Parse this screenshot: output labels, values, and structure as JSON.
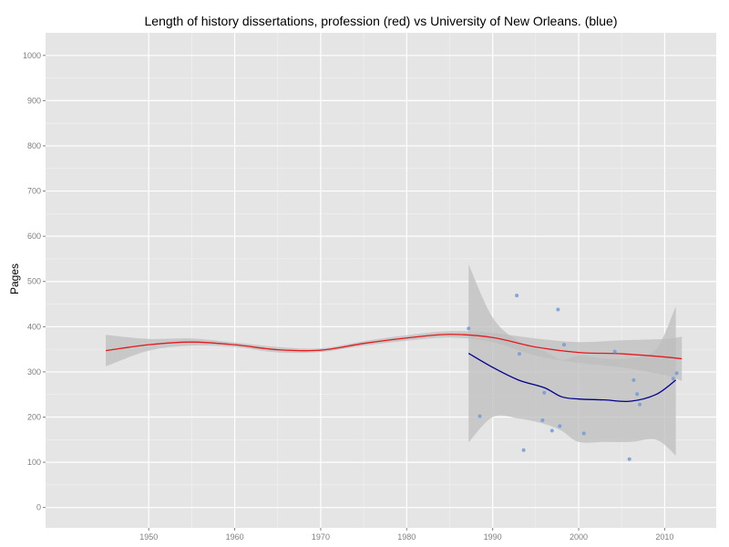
{
  "chart_data": {
    "type": "scatter",
    "title": "Length of history dissertations, profession (red) vs University of New Orleans. (blue)",
    "xlabel": "",
    "ylabel": "Pages",
    "xlim": [
      1938,
      2016
    ],
    "ylim": [
      -45,
      1050
    ],
    "x_ticks": [
      1950,
      1960,
      1970,
      1980,
      1990,
      2000,
      2010
    ],
    "x_tick_labels": [
      "1950",
      "1960",
      "1970",
      "1980",
      "1990",
      "2000",
      "2010"
    ],
    "y_ticks": [
      0,
      100,
      200,
      300,
      400,
      500,
      600,
      700,
      800,
      900,
      1000
    ],
    "y_tick_labels": [
      "0",
      "100",
      "200",
      "300",
      "400",
      "500",
      "600",
      "700",
      "800",
      "900",
      "1000"
    ],
    "grid": true,
    "colors": {
      "panel": "#e5e5e5",
      "grid_major": "#ffffff",
      "ribbon": "#bdbdbd",
      "profession": "#e41a1c",
      "uno": "#00008b",
      "points": "#6f9bd8"
    },
    "series": [
      {
        "kind": "points",
        "color": "#6f9bd8",
        "x": [
          1987.2,
          1988.5,
          1992.8,
          1993.1,
          1993.6,
          1995.8,
          1996.0,
          1996.9,
          1997.6,
          1997.8,
          1998.3,
          2000.6,
          2004.2,
          2005.9,
          2006.4,
          2006.8,
          2007.1,
          2011.0,
          2011.4
        ],
        "y": [
          396,
          202,
          469,
          340,
          127,
          193,
          254,
          170,
          438,
          180,
          360,
          164,
          345,
          107,
          282,
          251,
          228,
          285,
          297
        ]
      },
      {
        "kind": "smooth",
        "color": "#e41a1c",
        "x": [
          1945,
          1950,
          1955,
          1960,
          1965,
          1970,
          1975,
          1980,
          1985,
          1990,
          1995,
          2000,
          2005,
          2010,
          2012
        ],
        "y": [
          347,
          360,
          366,
          360,
          349,
          348,
          363,
          375,
          383,
          376,
          355,
          343,
          340,
          333,
          329
        ],
        "band_lower": [
          312,
          347,
          358,
          355,
          343,
          344,
          358,
          369,
          376,
          366,
          336,
          320,
          310,
          293,
          280
        ],
        "band_upper": [
          382,
          373,
          374,
          365,
          355,
          352,
          368,
          381,
          390,
          386,
          374,
          366,
          370,
          373,
          378
        ]
      },
      {
        "kind": "smooth",
        "color": "#00008b",
        "x": [
          1987.2,
          1990,
          1993,
          1996,
          1998,
          2000,
          2003,
          2006,
          2009,
          2011.3
        ],
        "y": [
          341,
          310,
          282,
          265,
          245,
          240,
          238,
          235,
          250,
          282
        ],
        "band_lower": [
          144,
          200,
          197,
          185,
          170,
          145,
          145,
          145,
          150,
          115
        ],
        "band_upper": [
          538,
          420,
          368,
          346,
          327,
          336,
          330,
          330,
          350,
          445
        ]
      }
    ]
  }
}
